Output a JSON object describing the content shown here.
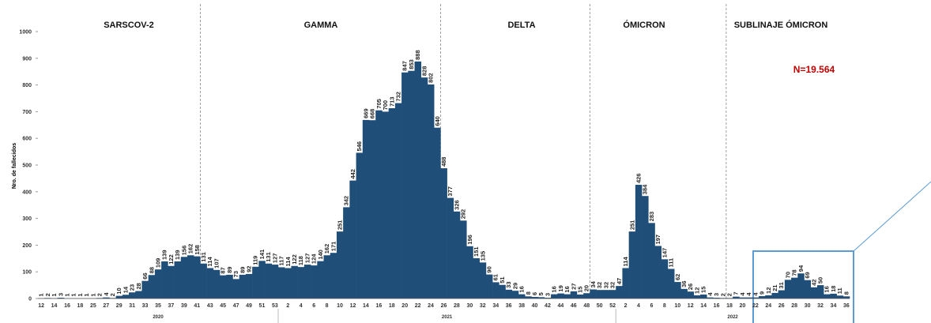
{
  "chart_data": {
    "type": "bar",
    "y_label": "Nro. de fallecidos",
    "annotation": "N=19.564",
    "annotation_color": "#c00000",
    "highlight_color": "#c00000",
    "highlight": [
      58,
      92,
      117
    ],
    "color": "#1f4e79",
    "sections": [
      "SARSCOV-2",
      "GAMMA",
      "DELTA",
      "ÓMICRON",
      "SUBLINAJE ÓMICRON"
    ],
    "years": [
      "2020",
      "2021",
      "2022"
    ],
    "ylim": [
      0,
      1000
    ],
    "yticks": [
      0,
      100,
      200,
      300,
      400,
      500,
      600,
      700,
      800,
      900,
      1000
    ],
    "categories": [
      "12",
      null,
      "14",
      null,
      "16",
      null,
      "18",
      null,
      "25",
      null,
      "27",
      null,
      "29",
      null,
      "31",
      null,
      "33",
      null,
      "35",
      null,
      "37",
      null,
      "39",
      null,
      "41",
      null,
      "43",
      null,
      "45",
      null,
      "47",
      null,
      "49",
      null,
      "51",
      null,
      "53",
      null,
      "2",
      null,
      "4",
      null,
      "6",
      null,
      "8",
      null,
      "10",
      null,
      "12",
      null,
      "14",
      null,
      "16",
      null,
      "18",
      null,
      "20",
      null,
      "22",
      null,
      "24",
      null,
      "26",
      null,
      "28",
      null,
      "30",
      null,
      "32",
      null,
      "34",
      null,
      "36",
      null,
      "38",
      null,
      "40",
      null,
      "42",
      null,
      "44",
      null,
      "46",
      null,
      "48",
      null,
      "50",
      null,
      "52",
      null,
      "2",
      null,
      "4",
      null,
      "6",
      null,
      "8",
      null,
      "10",
      null,
      "12",
      null,
      "14",
      null,
      "16",
      null,
      "18",
      null,
      "20",
      null,
      "22",
      null,
      "24",
      null,
      "26",
      null,
      "28",
      null,
      "30",
      null,
      "32",
      null,
      "34",
      null,
      "36"
    ],
    "values": [
      1,
      2,
      1,
      3,
      1,
      1,
      1,
      1,
      1,
      2,
      4,
      2,
      10,
      14,
      23,
      28,
      66,
      88,
      109,
      139,
      122,
      139,
      156,
      162,
      158,
      131,
      114,
      107,
      87,
      89,
      73,
      89,
      92,
      119,
      141,
      131,
      127,
      117,
      114,
      122,
      118,
      127,
      124,
      140,
      162,
      171,
      251,
      342,
      442,
      546,
      669,
      668,
      705,
      700,
      713,
      732,
      847,
      853,
      888,
      828,
      802,
      640,
      488,
      377,
      326,
      292,
      196,
      151,
      135,
      90,
      61,
      51,
      33,
      29,
      16,
      8,
      6,
      5,
      3,
      16,
      19,
      16,
      27,
      15,
      20,
      34,
      32,
      32,
      32,
      47,
      114,
      251,
      426,
      384,
      283,
      197,
      147,
      111,
      62,
      36,
      26,
      12,
      15,
      4,
      3,
      2,
      2,
      7,
      4,
      4,
      4,
      9,
      12,
      21,
      31,
      70,
      78,
      94,
      69,
      42,
      50,
      16,
      18,
      11,
      8
    ]
  }
}
